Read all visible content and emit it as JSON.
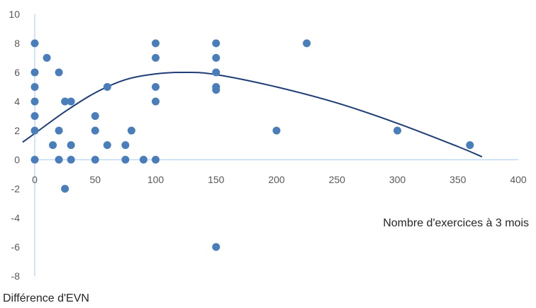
{
  "chart_data": {
    "type": "scatter",
    "xlabel": "Nombre d'exercices à 3 mois",
    "ylabel": "Différence d'EVN",
    "xlim": [
      0,
      400
    ],
    "ylim": [
      -8,
      10
    ],
    "x_ticks": [
      0,
      50,
      100,
      150,
      200,
      250,
      300,
      350,
      400
    ],
    "y_ticks": [
      -8,
      -6,
      -4,
      -2,
      0,
      2,
      4,
      6,
      8,
      10
    ],
    "x_tick_labels": [
      "0",
      "50",
      "100",
      "150",
      "200",
      "250",
      "300",
      "350",
      "400"
    ],
    "y_tick_labels": [
      "-8",
      "-6",
      "-4",
      "-2",
      "0",
      "2",
      "4",
      "6",
      "8",
      "10"
    ],
    "grid": false,
    "legend": "none",
    "colors": {
      "points": "#4a7ebb",
      "trendline": "#1f3e77",
      "axis": "#a6c8ec"
    },
    "points": [
      [
        0,
        8
      ],
      [
        0,
        6
      ],
      [
        0,
        5
      ],
      [
        0,
        4
      ],
      [
        0,
        3
      ],
      [
        0,
        2
      ],
      [
        0,
        0
      ],
      [
        10,
        7
      ],
      [
        15,
        1
      ],
      [
        20,
        6
      ],
      [
        20,
        2
      ],
      [
        20,
        0
      ],
      [
        25,
        4
      ],
      [
        25,
        -2
      ],
      [
        30,
        4
      ],
      [
        30,
        1
      ],
      [
        30,
        0
      ],
      [
        50,
        3
      ],
      [
        50,
        2
      ],
      [
        50,
        0
      ],
      [
        60,
        5
      ],
      [
        60,
        1
      ],
      [
        75,
        1
      ],
      [
        75,
        0
      ],
      [
        80,
        2
      ],
      [
        90,
        0
      ],
      [
        100,
        8
      ],
      [
        100,
        7
      ],
      [
        100,
        5
      ],
      [
        100,
        4
      ],
      [
        100,
        0
      ],
      [
        150,
        8
      ],
      [
        150,
        7
      ],
      [
        150,
        6
      ],
      [
        150,
        5
      ],
      [
        150,
        4.8
      ],
      [
        150,
        -6
      ],
      [
        200,
        2
      ],
      [
        225,
        8
      ],
      [
        300,
        2
      ],
      [
        360,
        1
      ]
    ],
    "trendline": {
      "type": "polynomial",
      "points": [
        [
          -10,
          1.2
        ],
        [
          0,
          1.8
        ],
        [
          25,
          3.3
        ],
        [
          50,
          4.6
        ],
        [
          75,
          5.5
        ],
        [
          100,
          5.9
        ],
        [
          125,
          6.0
        ],
        [
          150,
          5.85
        ],
        [
          200,
          5.0
        ],
        [
          250,
          3.9
        ],
        [
          300,
          2.5
        ],
        [
          350,
          0.9
        ],
        [
          370,
          0.2
        ]
      ]
    }
  }
}
